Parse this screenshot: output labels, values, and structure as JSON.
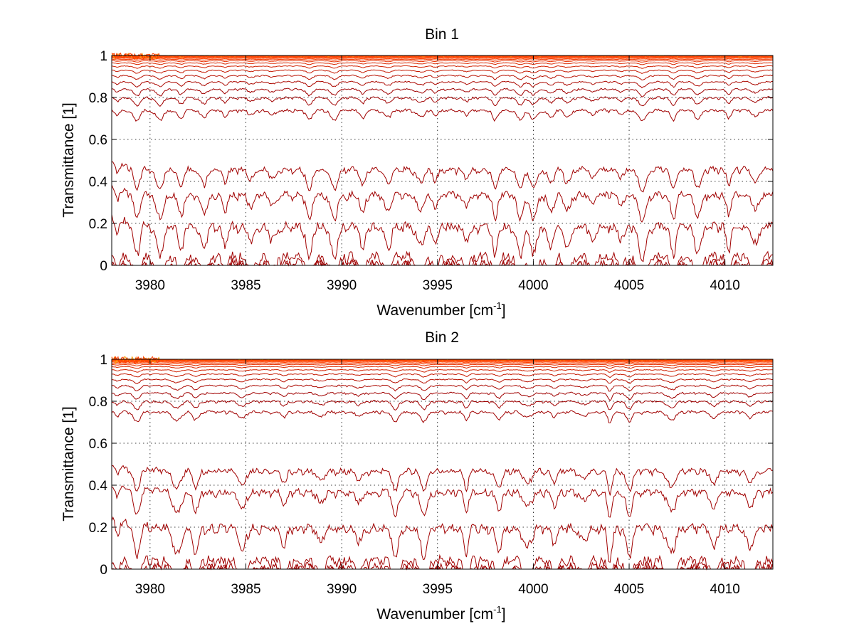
{
  "chart_data": [
    {
      "type": "line",
      "title": "Bin 1",
      "xlabel": "Wavenumber [cm",
      "xlabel_sup": "-1",
      "xlabel_close": "]",
      "ylabel": "Transmittance [1]",
      "xlim": [
        3978,
        4012.5
      ],
      "ylim": [
        0,
        1
      ],
      "xticks": [
        3980,
        3985,
        3990,
        3995,
        4000,
        4005,
        4010
      ],
      "xtick_labels": [
        "3980",
        "3985",
        "3990",
        "3995",
        "4000",
        "4005",
        "4010"
      ],
      "yticks": [
        0,
        0.2,
        0.4,
        0.6,
        0.8,
        1
      ],
      "ytick_labels": [
        "0",
        "0.2",
        "0.4",
        "0.6",
        "0.8",
        "1"
      ],
      "grid": true,
      "legend": "none",
      "series_levels": [
        0.004,
        0.012,
        0.045,
        0.19,
        0.34,
        0.46,
        0.74,
        0.8,
        0.84,
        0.875,
        0.905,
        0.93,
        0.95,
        0.965,
        0.975,
        0.982,
        0.987,
        0.991,
        0.994,
        0.996,
        0.998
      ],
      "absorption_lines": [
        3978.3,
        3979.3,
        3980.5,
        3981.6,
        3982.8,
        3983.9,
        3985.3,
        3986.4,
        3988.3,
        3989.6,
        3991.1,
        3992.4,
        3994.1,
        3994.9,
        3996.5,
        3998.0,
        3999.3,
        4000.0,
        4000.9,
        4001.8,
        4003.1,
        4004.6,
        4005.7,
        4007.3,
        4008.6,
        4010.2,
        4011.6
      ],
      "colors": {
        "low": "#a00000",
        "high": "#ff4000",
        "top": "#ff9900"
      }
    },
    {
      "type": "line",
      "title": "Bin 2",
      "xlabel": "Wavenumber [cm",
      "xlabel_sup": "-1",
      "xlabel_close": "]",
      "ylabel": "Transmittance [1]",
      "xlim": [
        3978,
        4012.5
      ],
      "ylim": [
        0,
        1
      ],
      "xticks": [
        3980,
        3985,
        3990,
        3995,
        4000,
        4005,
        4010
      ],
      "xtick_labels": [
        "3980",
        "3985",
        "3990",
        "3995",
        "4000",
        "4005",
        "4010"
      ],
      "yticks": [
        0,
        0.2,
        0.4,
        0.6,
        0.8,
        1
      ],
      "ytick_labels": [
        "0",
        "0.2",
        "0.4",
        "0.6",
        "0.8",
        "1"
      ],
      "grid": true,
      "legend": "none",
      "series_levels": [
        0.004,
        0.012,
        0.045,
        0.2,
        0.37,
        0.47,
        0.75,
        0.8,
        0.84,
        0.875,
        0.905,
        0.93,
        0.95,
        0.965,
        0.975,
        0.982,
        0.987,
        0.991,
        0.994,
        0.996,
        0.998
      ],
      "absorption_lines": [
        3978.3,
        3979.3,
        3981.4,
        3982.4,
        3984.8,
        3987.0,
        3988.9,
        3990.9,
        3992.8,
        3994.3,
        3996.5,
        3998.2,
        3999.7,
        4001.1,
        4002.6,
        4004.0,
        4005.0,
        4007.2,
        4009.4,
        4011.3
      ],
      "colors": {
        "low": "#a00000",
        "high": "#ff4000",
        "top": "#ff9900"
      }
    }
  ]
}
